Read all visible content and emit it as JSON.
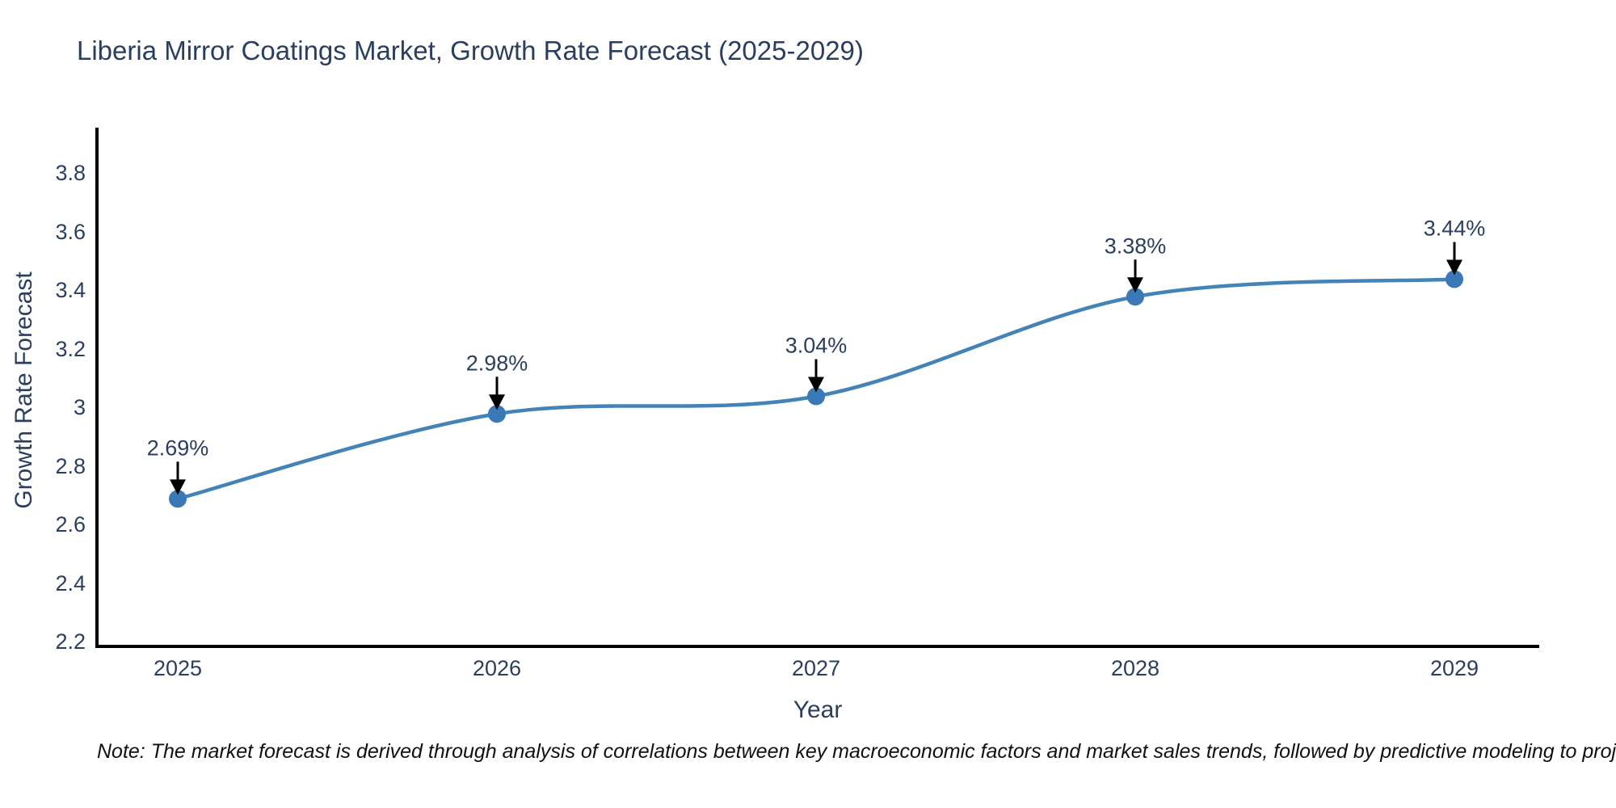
{
  "title": "Liberia Mirror Coatings Market, Growth Rate Forecast (2025-2029)",
  "note": "Note: The market forecast is derived through analysis of correlations between key macroeconomic factors and market sales trends, followed by predictive modeling to project future sales",
  "chart_data": {
    "type": "line",
    "line_shape": "spline",
    "title": "Liberia Mirror Coatings Market, Growth Rate Forecast (2025-2029)",
    "xlabel": "Year",
    "ylabel": "Growth Rate Forecast",
    "x": [
      2025,
      2026,
      2027,
      2028,
      2029
    ],
    "values": [
      2.69,
      2.98,
      3.04,
      3.38,
      3.44
    ],
    "point_labels": [
      "2.69%",
      "2.98%",
      "3.04%",
      "3.38%",
      "3.44%"
    ],
    "x_tick_labels": [
      "2025",
      "2026",
      "2027",
      "2028",
      "2029"
    ],
    "y_tick_labels": [
      "2.2",
      "2.4",
      "2.6",
      "2.8",
      "3",
      "3.2",
      "3.4",
      "3.6",
      "3.8"
    ],
    "ylim": [
      2.2,
      3.8
    ],
    "grid": false,
    "legend": false,
    "colors": {
      "line": "#4383b8",
      "marker": "#3a79b5",
      "axis": "#000000",
      "text": "#2a3f5f",
      "annotation_arrow": "#000000"
    }
  }
}
